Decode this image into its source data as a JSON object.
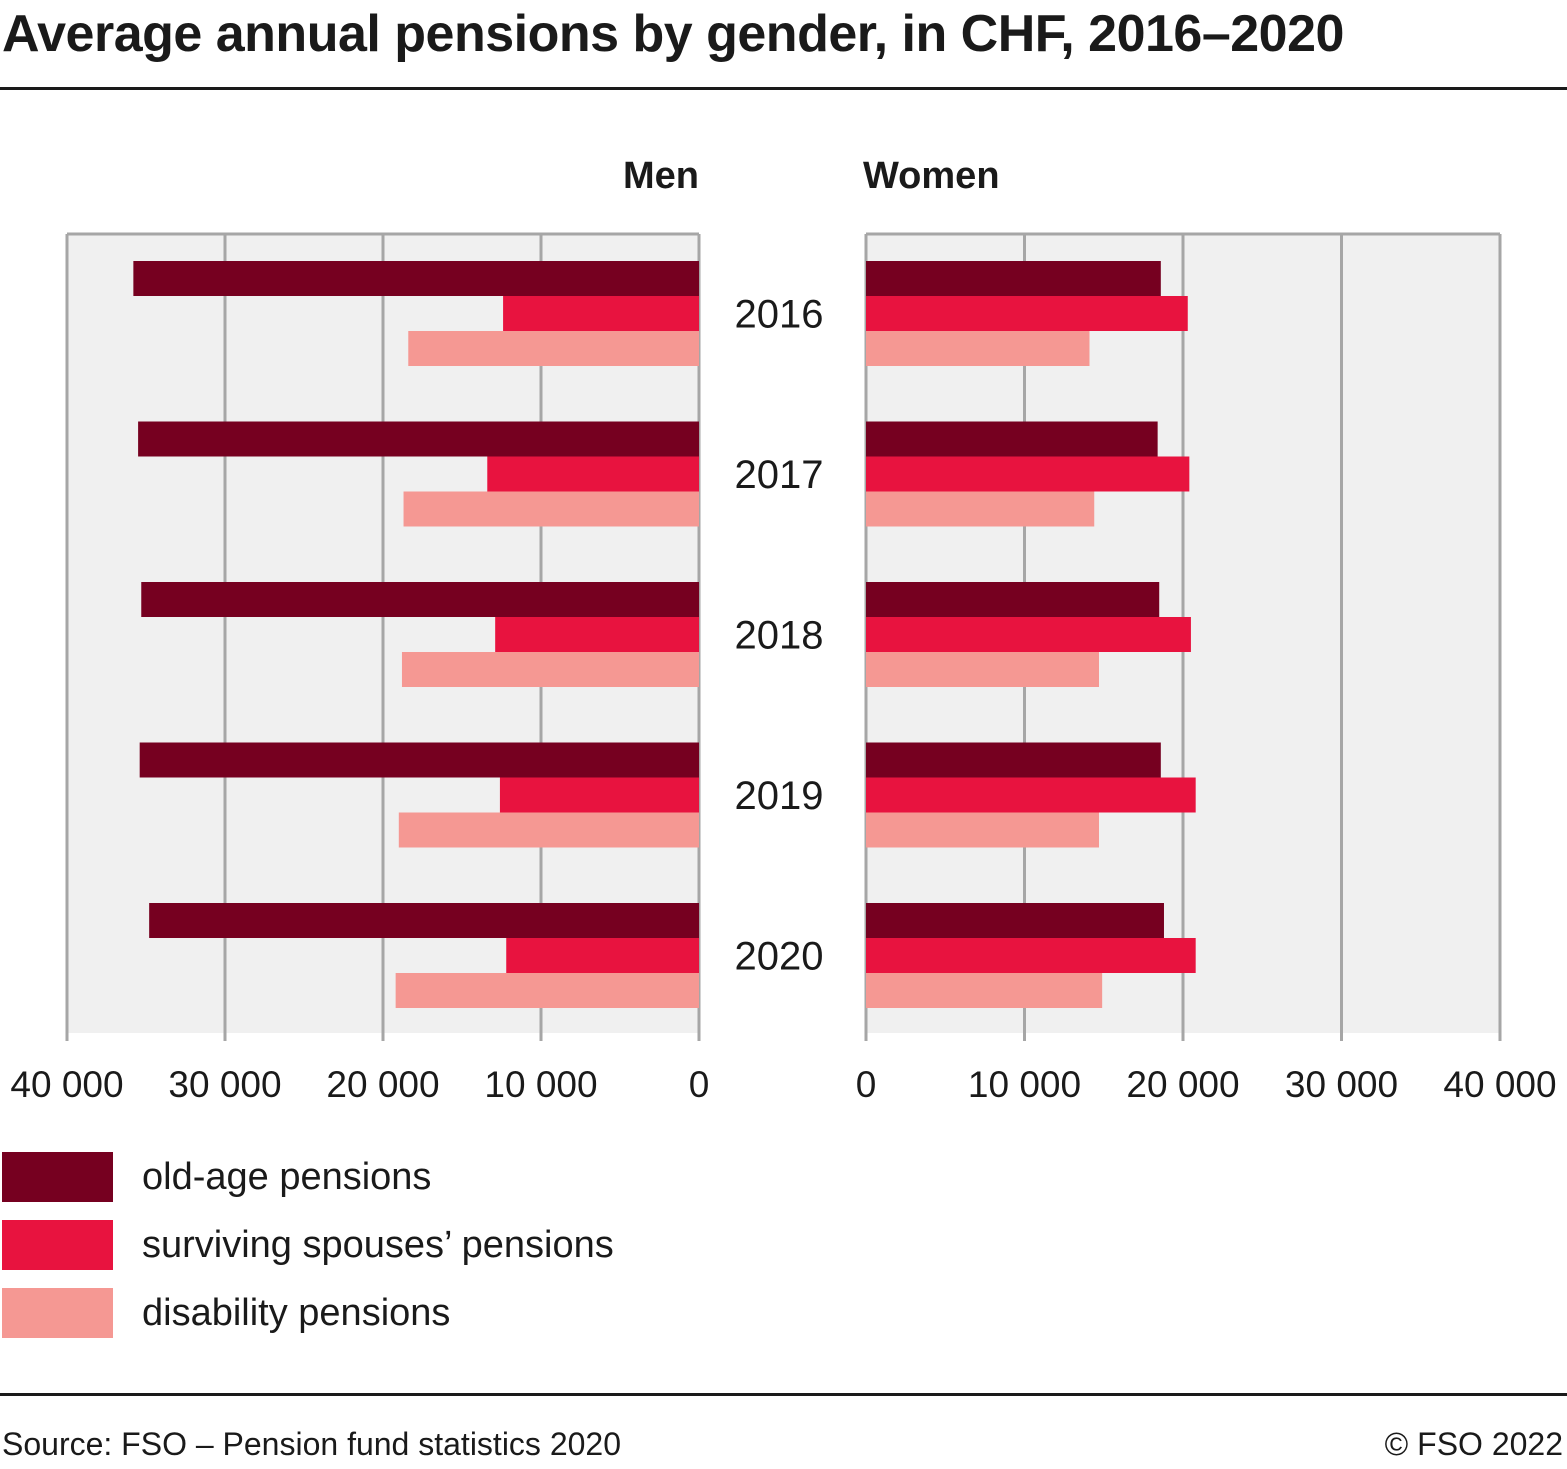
{
  "title": "Average annual pensions by gender, in CHF, 2016–2020",
  "source": "Source: FSO – Pension fund statistics 2020",
  "copyright": "© FSO 2022",
  "colors": {
    "old_age": "#760020",
    "surviving": "#e8133f",
    "disability": "#f59893",
    "plot_bg": "#f0f0f0",
    "grid": "#a6a6a6"
  },
  "chart_data": {
    "type": "bar",
    "orientation": "horizontal",
    "layout": "back-to-back panels",
    "categories": [
      "2016",
      "2017",
      "2018",
      "2019",
      "2020"
    ],
    "panels": [
      {
        "title": "Men",
        "direction": "leftward",
        "xlim": [
          0,
          40000
        ],
        "tick_labels": [
          "40 000",
          "30 000",
          "20 000",
          "10 000",
          "0"
        ],
        "series": [
          {
            "name": "old-age pensions",
            "values": [
              35800,
              35500,
              35300,
              35400,
              34800
            ]
          },
          {
            "name": "surviving spouses’ pensions",
            "values": [
              12400,
              13400,
              12900,
              12600,
              12200
            ]
          },
          {
            "name": "disability pensions",
            "values": [
              18400,
              18700,
              18800,
              19000,
              19200
            ]
          }
        ]
      },
      {
        "title": "Women",
        "direction": "rightward",
        "xlim": [
          0,
          40000
        ],
        "tick_labels": [
          "0",
          "10 000",
          "20 000",
          "30 000",
          "40 000"
        ],
        "series": [
          {
            "name": "old-age pensions",
            "values": [
              18600,
              18400,
              18500,
              18600,
              18800
            ]
          },
          {
            "name": "surviving spouses’ pensions",
            "values": [
              20300,
              20400,
              20500,
              20800,
              20800
            ]
          },
          {
            "name": "disability pensions",
            "values": [
              14100,
              14400,
              14700,
              14700,
              14900
            ]
          }
        ]
      }
    ],
    "legend": {
      "placement": "bottom-left",
      "entries": [
        "old-age pensions",
        "surviving spouses’ pensions",
        "disability pensions"
      ]
    },
    "grid": true
  }
}
